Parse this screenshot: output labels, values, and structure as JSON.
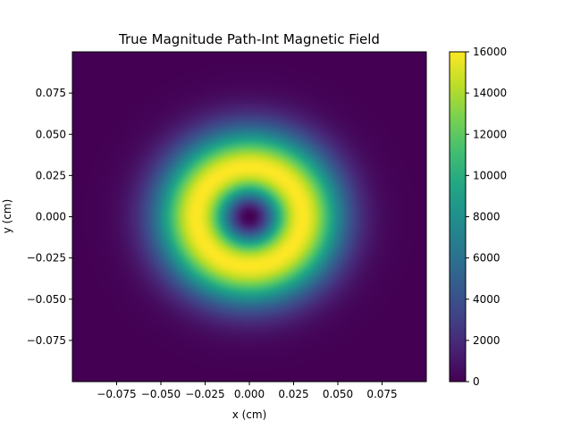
{
  "chart_data": {
    "type": "heatmap",
    "title": "True Magnitude Path-Int Magnetic Field",
    "xlabel": "x (cm)",
    "ylabel": "y (cm)",
    "xlim": [
      -0.1,
      0.1
    ],
    "ylim": [
      -0.1,
      0.1
    ],
    "x_ticks": [
      -0.075,
      -0.05,
      -0.025,
      0.0,
      0.025,
      0.05,
      0.075
    ],
    "x_tick_labels": [
      "−0.075",
      "−0.050",
      "−0.025",
      "0.000",
      "0.025",
      "0.050",
      "0.075"
    ],
    "y_ticks": [
      0.075,
      0.05,
      0.025,
      0.0,
      -0.025,
      -0.05,
      -0.075
    ],
    "y_tick_labels": [
      "0.075",
      "0.050",
      "0.025",
      "0.000",
      "−0.025",
      "−0.050",
      "−0.075"
    ],
    "colorbar": {
      "range": [
        0,
        16000
      ],
      "ticks": [
        0,
        2000,
        4000,
        6000,
        8000,
        10000,
        12000,
        14000,
        16000
      ],
      "tick_labels": [
        "0",
        "2000",
        "4000",
        "6000",
        "8000",
        "10000",
        "12000",
        "14000",
        "16000"
      ]
    },
    "colormap": "viridis",
    "field": {
      "description_of_shape": "radially symmetric ring",
      "center": [
        0.0,
        0.0
      ],
      "peak_radius_cm": 0.03,
      "peak_value": 16000,
      "value_at_center": 0
    }
  }
}
